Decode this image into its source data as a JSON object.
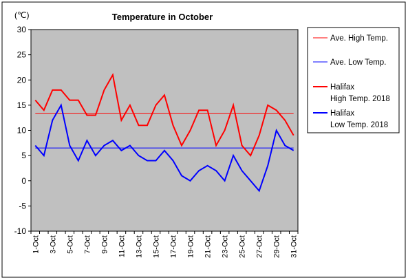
{
  "chart_data": {
    "type": "line",
    "title": "Temperature in October",
    "ylabel": "(℃)",
    "xlabel": "",
    "ylim": [
      -10,
      30
    ],
    "yticks": [
      30,
      25,
      20,
      15,
      10,
      5,
      0,
      -5,
      -10
    ],
    "xtick_labels": [
      "1-Oct",
      "3-Oct",
      "5-Oct",
      "7-Oct",
      "9-Oct",
      "11-Oct",
      "13-Oct",
      "15-Oct",
      "17-Oct",
      "19-Oct",
      "21-Oct",
      "23-Oct",
      "25-Oct",
      "27-Oct",
      "29-Oct",
      "31-Oct"
    ],
    "x": [
      1,
      2,
      3,
      4,
      5,
      6,
      7,
      8,
      9,
      10,
      11,
      12,
      13,
      14,
      15,
      16,
      17,
      18,
      19,
      20,
      21,
      22,
      23,
      24,
      25,
      26,
      27,
      28,
      29,
      30,
      31
    ],
    "grid": false,
    "plot_background": "#c0c0c0",
    "legend_position": "right",
    "series": [
      {
        "name": "Ave. High Temp.",
        "color": "#ff0000",
        "thin": true,
        "values": [
          13.4,
          13.4,
          13.4,
          13.4,
          13.4,
          13.4,
          13.4,
          13.4,
          13.4,
          13.4,
          13.4,
          13.4,
          13.4,
          13.4,
          13.4,
          13.4,
          13.4,
          13.4,
          13.4,
          13.4,
          13.4,
          13.4,
          13.4,
          13.4,
          13.4,
          13.4,
          13.4,
          13.4,
          13.4,
          13.4,
          13.4
        ]
      },
      {
        "name": "Ave. Low Temp.",
        "color": "#0000ff",
        "thin": true,
        "values": [
          6.5,
          6.5,
          6.5,
          6.5,
          6.5,
          6.5,
          6.5,
          6.5,
          6.5,
          6.5,
          6.5,
          6.5,
          6.5,
          6.5,
          6.5,
          6.5,
          6.5,
          6.5,
          6.5,
          6.5,
          6.5,
          6.5,
          6.5,
          6.5,
          6.5,
          6.5,
          6.5,
          6.5,
          6.5,
          6.5,
          6.5
        ]
      },
      {
        "name": "Halifax\nHigh Temp. 2018",
        "color": "#ff0000",
        "thin": false,
        "values": [
          16,
          14,
          18,
          18,
          16,
          16,
          13,
          13,
          18,
          21,
          12,
          15,
          11,
          11,
          15,
          17,
          11,
          7,
          10,
          14,
          14,
          7,
          10,
          15,
          7,
          5,
          9,
          15,
          14,
          12,
          9
        ]
      },
      {
        "name": "Halifax\nLow Temp. 2018",
        "color": "#0000ff",
        "thin": false,
        "values": [
          7,
          5,
          12,
          15,
          7,
          4,
          8,
          5,
          7,
          8,
          6,
          7,
          5,
          4,
          4,
          6,
          4,
          1,
          0,
          2,
          3,
          2,
          0,
          5,
          2,
          0,
          -2,
          3,
          10,
          7,
          6
        ]
      }
    ]
  }
}
